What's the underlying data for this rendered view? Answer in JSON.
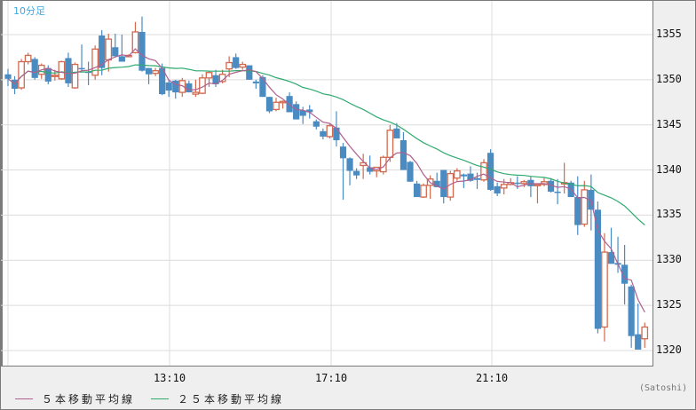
{
  "chart_title": "10分足",
  "unit_label": "(Satoshi)",
  "colors": {
    "up": "#d2694e",
    "down": "#4a8bc2",
    "ma5": "#b0608f",
    "ma25": "#2eaa6e",
    "grid": "#dcdcdc",
    "title": "#3aa8e0"
  },
  "legend": [
    {
      "label": "５本移動平均線",
      "color": "#b0608f"
    },
    {
      "label": "２５本移動平均線",
      "color": "#2eaa6e"
    }
  ],
  "y_axis": {
    "ticks": [
      "1355",
      "1350",
      "1345",
      "1340",
      "1335",
      "1330",
      "1325",
      "1320"
    ]
  },
  "x_axis": {
    "ticks": [
      "13:10",
      "17:10",
      "21:10"
    ]
  },
  "chart_data": {
    "type": "candlestick",
    "title": "10分足",
    "xlabel": "",
    "ylabel": "(Satoshi)",
    "ylim": [
      1318.3,
      1358.7
    ],
    "x_ticks": [
      "13:10",
      "17:10",
      "21:10"
    ],
    "y_ticks": [
      1320,
      1325,
      1330,
      1335,
      1340,
      1345,
      1350,
      1355
    ],
    "interval": "10min",
    "grid": true,
    "legend": [
      "５本移動平均線",
      "２５本移動平均線"
    ],
    "ohlc": [
      [
        1350.6,
        1351.2,
        1349.3,
        1350.1
      ],
      [
        1350.0,
        1350.4,
        1348.4,
        1349.0
      ],
      [
        1349.1,
        1352.3,
        1348.9,
        1352.0
      ],
      [
        1352.0,
        1353.0,
        1351.7,
        1352.7
      ],
      [
        1352.3,
        1352.5,
        1350.0,
        1350.2
      ],
      [
        1350.6,
        1351.8,
        1350.1,
        1351.6
      ],
      [
        1351.3,
        1351.6,
        1349.5,
        1349.8
      ],
      [
        1350.4,
        1351.1,
        1349.9,
        1350.5
      ],
      [
        1350.1,
        1352.1,
        1350.0,
        1352.0
      ],
      [
        1352.4,
        1353.0,
        1349.2,
        1349.6
      ],
      [
        1349.1,
        1351.9,
        1349.0,
        1351.7
      ],
      [
        1351.3,
        1353.9,
        1351.0,
        1351.2
      ],
      [
        1350.9,
        1352.0,
        1349.4,
        1350.8
      ],
      [
        1350.5,
        1353.8,
        1350.0,
        1353.4
      ],
      [
        1354.9,
        1355.5,
        1350.5,
        1351.3
      ],
      [
        1352.2,
        1355.1,
        1350.9,
        1354.5
      ],
      [
        1353.6,
        1355.1,
        1352.6,
        1352.6
      ],
      [
        1352.6,
        1355.0,
        1352.2,
        1352.0
      ],
      [
        1352.6,
        1352.8,
        1352.5,
        1352.7
      ],
      [
        1353.0,
        1356.4,
        1352.9,
        1355.3
      ],
      [
        1355.3,
        1357.0,
        1350.9,
        1351.0
      ],
      [
        1351.3,
        1351.3,
        1349.5,
        1350.6
      ],
      [
        1350.7,
        1351.3,
        1350.4,
        1351.0
      ],
      [
        1351.3,
        1351.8,
        1348.3,
        1348.4
      ],
      [
        1349.7,
        1350.0,
        1348.1,
        1348.8
      ],
      [
        1349.9,
        1350.0,
        1347.9,
        1348.6
      ],
      [
        1348.6,
        1350.2,
        1348.1,
        1349.9
      ],
      [
        1349.6,
        1349.9,
        1348.6,
        1348.6
      ],
      [
        1348.4,
        1350.0,
        1348.1,
        1348.6
      ],
      [
        1348.5,
        1350.6,
        1348.4,
        1350.2
      ],
      [
        1350.2,
        1351.0,
        1349.2,
        1350.8
      ],
      [
        1350.5,
        1351.1,
        1349.2,
        1349.5
      ],
      [
        1349.8,
        1351.1,
        1349.6,
        1350.6
      ],
      [
        1351.2,
        1352.6,
        1350.3,
        1351.9
      ],
      [
        1352.5,
        1352.9,
        1351.2,
        1351.3
      ],
      [
        1351.4,
        1352.0,
        1351.1,
        1351.7
      ],
      [
        1351.6,
        1351.6,
        1350.0,
        1350.0
      ],
      [
        1349.8,
        1350.0,
        1349.0,
        1349.6
      ],
      [
        1350.3,
        1350.5,
        1348.1,
        1348.1
      ],
      [
        1348.1,
        1348.1,
        1346.3,
        1346.5
      ],
      [
        1346.7,
        1348.0,
        1346.5,
        1347.5
      ],
      [
        1347.5,
        1347.7,
        1346.8,
        1347.6
      ],
      [
        1348.2,
        1348.6,
        1346.5,
        1346.4
      ],
      [
        1347.3,
        1347.6,
        1345.7,
        1345.6
      ],
      [
        1346.6,
        1347.0,
        1345.1,
        1346.0
      ],
      [
        1346.7,
        1347.2,
        1345.7,
        1346.4
      ],
      [
        1345.4,
        1345.6,
        1344.5,
        1344.8
      ],
      [
        1344.3,
        1344.6,
        1343.4,
        1343.7
      ],
      [
        1343.7,
        1345.1,
        1343.5,
        1344.9
      ],
      [
        1344.7,
        1346.5,
        1342.6,
        1343.3
      ],
      [
        1342.6,
        1343.0,
        1336.7,
        1341.3
      ],
      [
        1341.3,
        1341.4,
        1338.3,
        1339.9
      ],
      [
        1339.9,
        1340.2,
        1339.0,
        1339.4
      ],
      [
        1340.5,
        1341.8,
        1339.0,
        1340.8
      ],
      [
        1340.3,
        1341.6,
        1339.5,
        1339.8
      ],
      [
        1339.9,
        1340.3,
        1339.2,
        1340.3
      ],
      [
        1339.8,
        1341.6,
        1339.5,
        1341.4
      ],
      [
        1341.4,
        1345.0,
        1340.9,
        1344.4
      ],
      [
        1344.6,
        1345.2,
        1343.7,
        1343.5
      ],
      [
        1343.3,
        1344.2,
        1340.2,
        1340.0
      ],
      [
        1340.9,
        1341.0,
        1338.7,
        1338.7
      ],
      [
        1338.5,
        1338.8,
        1337.4,
        1337.0
      ],
      [
        1337.0,
        1338.5,
        1336.9,
        1338.3
      ],
      [
        1338.3,
        1339.4,
        1336.8,
        1339.0
      ],
      [
        1338.8,
        1339.7,
        1338.1,
        1338.1
      ],
      [
        1340.0,
        1340.0,
        1336.3,
        1337.0
      ],
      [
        1337.0,
        1339.9,
        1336.6,
        1339.6
      ],
      [
        1339.1,
        1340.2,
        1338.8,
        1339.9
      ],
      [
        1339.5,
        1339.6,
        1338.0,
        1339.3
      ],
      [
        1339.6,
        1340.4,
        1338.7,
        1338.8
      ],
      [
        1339.1,
        1339.7,
        1337.9,
        1338.9
      ],
      [
        1338.9,
        1341.2,
        1338.7,
        1340.8
      ],
      [
        1341.9,
        1342.3,
        1337.7,
        1337.8
      ],
      [
        1338.2,
        1338.6,
        1337.1,
        1337.4
      ],
      [
        1338.0,
        1339.0,
        1337.3,
        1338.4
      ],
      [
        1338.4,
        1339.1,
        1338.3,
        1338.6
      ],
      [
        1338.6,
        1339.3,
        1337.9,
        1338.5
      ],
      [
        1338.5,
        1338.9,
        1338.1,
        1338.7
      ],
      [
        1338.9,
        1339.3,
        1337.0,
        1338.2
      ],
      [
        1338.4,
        1338.5,
        1336.3,
        1338.4
      ],
      [
        1338.4,
        1339.1,
        1338.2,
        1338.7
      ],
      [
        1338.8,
        1339.1,
        1337.5,
        1337.6
      ],
      [
        1337.6,
        1339.0,
        1336.2,
        1337.5
      ],
      [
        1338.6,
        1340.8,
        1337.4,
        1338.6
      ],
      [
        1338.6,
        1338.8,
        1337.3,
        1337.0
      ],
      [
        1337.0,
        1339.3,
        1332.8,
        1333.9
      ],
      [
        1334.0,
        1338.8,
        1333.7,
        1337.8
      ],
      [
        1337.8,
        1339.5,
        1333.3,
        1335.6
      ],
      [
        1335.6,
        1336.5,
        1321.9,
        1322.4
      ],
      [
        1322.6,
        1333.0,
        1321.0,
        1330.9
      ],
      [
        1330.9,
        1333.6,
        1329.7,
        1329.6
      ],
      [
        1329.7,
        1332.6,
        1328.6,
        1329.5
      ],
      [
        1329.5,
        1331.7,
        1325.1,
        1327.4
      ],
      [
        1327.1,
        1327.3,
        1320.3,
        1321.6
      ],
      [
        1321.8,
        1325.2,
        1320.6,
        1320.1
      ],
      [
        1321.3,
        1323.1,
        1320.3,
        1322.6
      ]
    ],
    "ma5_color": "#b0608f",
    "ma25_color": "#2eaa6e"
  }
}
